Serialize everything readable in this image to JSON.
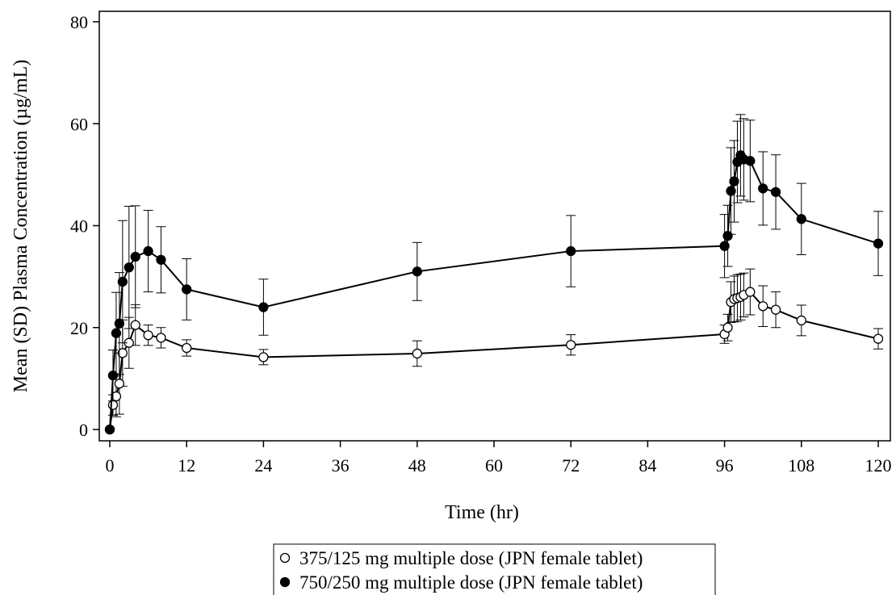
{
  "chart_data": {
    "type": "line",
    "title": "",
    "xlabel": "Time (hr)",
    "ylabel": "Mean (SD) Plasma Concentration (µg/mL)",
    "xlim": [
      0,
      120
    ],
    "ylim": [
      0,
      80
    ],
    "x_ticks": [
      "0",
      "12",
      "24",
      "36",
      "48",
      "60",
      "72",
      "84",
      "96",
      "108",
      "120"
    ],
    "y_ticks": [
      "0",
      "20",
      "40",
      "60",
      "80"
    ],
    "grid": false,
    "legend_position": "bottom",
    "error_bars": "SD",
    "series": [
      {
        "name": "375/125 mg multiple dose (JPN female tablet)",
        "marker": "open-circle",
        "color": "#000000",
        "x": [
          0,
          0.5,
          1,
          1.5,
          2,
          3,
          4,
          6,
          8,
          12,
          24,
          48,
          72,
          96,
          96.5,
          97,
          97.5,
          98,
          98.5,
          99,
          100,
          102,
          104,
          108,
          120
        ],
        "y": [
          0,
          4.8,
          6.5,
          9.0,
          15.0,
          17.0,
          20.5,
          18.5,
          18.0,
          16.0,
          14.2,
          14.9,
          16.6,
          18.7,
          20.0,
          25.0,
          25.6,
          25.8,
          26.0,
          26.4,
          27.0,
          24.2,
          23.5,
          21.4,
          17.8
        ],
        "sd": [
          0,
          2.0,
          4.0,
          6.0,
          6.5,
          5.0,
          4.0,
          2.0,
          2.0,
          1.6,
          1.5,
          2.5,
          2.0,
          1.8,
          2.6,
          4.0,
          4.5,
          4.6,
          4.5,
          4.3,
          4.5,
          4.0,
          3.5,
          3.0,
          2.0
        ]
      },
      {
        "name": "750/250 mg multiple dose (JPN female tablet)",
        "marker": "filled-circle",
        "color": "#000000",
        "x": [
          0,
          0.5,
          1,
          1.5,
          2,
          3,
          4,
          6,
          8,
          12,
          24,
          48,
          72,
          96,
          96.5,
          97,
          97.5,
          98,
          98.5,
          99,
          100,
          102,
          104,
          108,
          120
        ],
        "y": [
          0,
          10.6,
          18.9,
          20.8,
          29.0,
          31.8,
          33.9,
          35.0,
          33.3,
          27.5,
          24.0,
          31.0,
          35.0,
          36.0,
          38.0,
          46.8,
          48.7,
          52.5,
          53.8,
          53.0,
          52.7,
          47.3,
          46.6,
          41.3,
          36.5
        ],
        "sd": [
          0,
          5.0,
          8.0,
          10.0,
          12.0,
          12.0,
          10.0,
          8.0,
          6.5,
          6.0,
          5.5,
          5.7,
          7.0,
          6.2,
          6.0,
          8.5,
          8.0,
          8.0,
          8.0,
          8.0,
          8.0,
          7.2,
          7.3,
          7.0,
          6.3
        ]
      }
    ]
  }
}
